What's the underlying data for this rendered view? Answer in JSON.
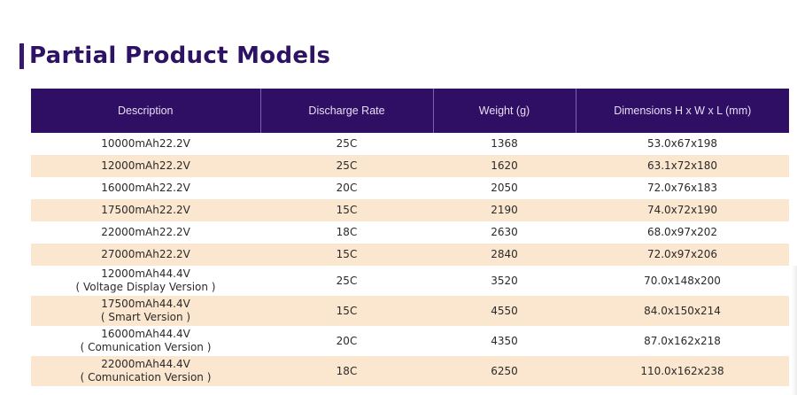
{
  "title": "Partial Product Models",
  "table": {
    "headers": [
      "Description",
      "Discharge Rate",
      "Weight (g)",
      "Dimensions H x W x L (mm)"
    ],
    "rows": [
      {
        "desc": "10000mAh22.2V",
        "sub": "",
        "rate": "25C",
        "weight": "1368",
        "dims": "53.0x67x198"
      },
      {
        "desc": "12000mAh22.2V",
        "sub": "",
        "rate": "25C",
        "weight": "1620",
        "dims": "63.1x72x180"
      },
      {
        "desc": "16000mAh22.2V",
        "sub": "",
        "rate": "20C",
        "weight": "2050",
        "dims": "72.0x76x183"
      },
      {
        "desc": "17500mAh22.2V",
        "sub": "",
        "rate": "15C",
        "weight": "2190",
        "dims": "74.0x72x190"
      },
      {
        "desc": "22000mAh22.2V",
        "sub": "",
        "rate": "18C",
        "weight": "2630",
        "dims": "68.0x97x202"
      },
      {
        "desc": "27000mAh22.2V",
        "sub": "",
        "rate": "15C",
        "weight": "2840",
        "dims": "72.0x97x206"
      },
      {
        "desc": "12000mAh44.4V",
        "sub": "( Voltage Display Version )",
        "rate": "25C",
        "weight": "3520",
        "dims": "70.0x148x200"
      },
      {
        "desc": "17500mAh44.4V",
        "sub": "( Smart Version )",
        "rate": "15C",
        "weight": "4550",
        "dims": "84.0x150x214"
      },
      {
        "desc": "16000mAh44.4V",
        "sub": "( Comunication Version )",
        "rate": "20C",
        "weight": "4350",
        "dims": "87.0x162x218"
      },
      {
        "desc": "22000mAh44.4V",
        "sub": "( Comunication Version )",
        "rate": "18C",
        "weight": "6250",
        "dims": "110.0x162x238"
      }
    ]
  }
}
